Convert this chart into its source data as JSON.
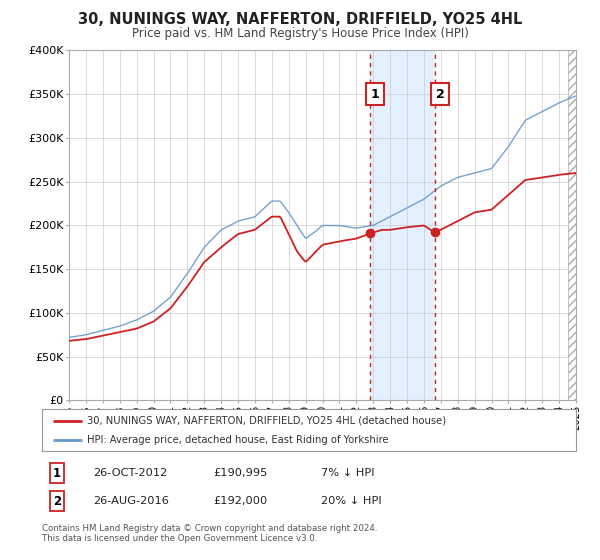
{
  "title": "30, NUNINGS WAY, NAFFERTON, DRIFFIELD, YO25 4HL",
  "subtitle": "Price paid vs. HM Land Registry's House Price Index (HPI)",
  "legend_line1": "30, NUNINGS WAY, NAFFERTON, DRIFFIELD, YO25 4HL (detached house)",
  "legend_line2": "HPI: Average price, detached house, East Riding of Yorkshire",
  "footnote1": "Contains HM Land Registry data © Crown copyright and database right 2024.",
  "footnote2": "This data is licensed under the Open Government Licence v3.0.",
  "red_color": "#cc2222",
  "blue_color": "#6699cc",
  "blue_fill": "#ddeeff",
  "marker1_date": 2012.82,
  "marker1_value": 190995,
  "marker1_label": "1",
  "marker1_text": "26-OCT-2012",
  "marker1_price": "£190,995",
  "marker1_hpi": "7% ↓ HPI",
  "marker2_date": 2016.65,
  "marker2_value": 192000,
  "marker2_label": "2",
  "marker2_text": "26-AUG-2016",
  "marker2_price": "£192,000",
  "marker2_hpi": "20% ↓ HPI",
  "xmin": 1995,
  "xmax": 2025,
  "ymin": 0,
  "ymax": 400000,
  "yticks": [
    0,
    50000,
    100000,
    150000,
    200000,
    250000,
    300000,
    350000,
    400000
  ],
  "ytick_labels": [
    "£0",
    "£50K",
    "£100K",
    "£150K",
    "£200K",
    "£250K",
    "£300K",
    "£350K",
    "£400K"
  ]
}
